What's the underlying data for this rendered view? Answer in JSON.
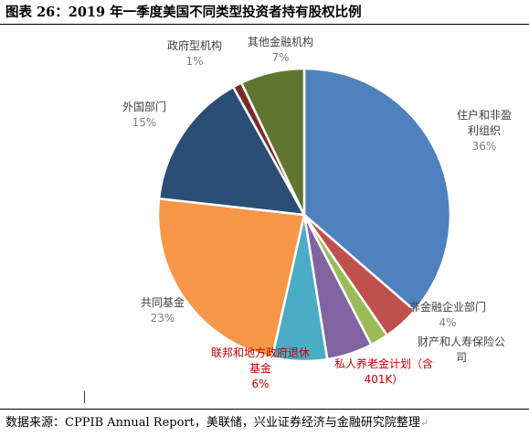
{
  "figure": {
    "title": "图表  26：2019 年一季度美国不同类型投资者持有股权比例",
    "source": "数据来源：CPPIB Annual Report，美联储，兴业证券经济与金融研究院整理"
  },
  "chart_data": {
    "type": "pie",
    "start_angle_deg": 0,
    "direction": "clockwise",
    "slices": [
      {
        "label": [
          "住户和非盈",
          "利组织"
        ],
        "value": 36,
        "value_label": "36%",
        "color": "#4f81bd",
        "label_color": "#404040"
      },
      {
        "label": [
          "非金融企业部门"
        ],
        "value": 4,
        "value_label": "4%",
        "color": "#c0504d",
        "label_color": "#404040"
      },
      {
        "label": [
          "财产和人寿保险公",
          "司"
        ],
        "value": 2,
        "value_label": "",
        "color": "#9bbb59",
        "label_color": "#404040"
      },
      {
        "label": [
          "私人养老金计划（含",
          "401K）"
        ],
        "value": 5,
        "value_label": "",
        "color": "#8064a2",
        "label_color": "#c00000"
      },
      {
        "label": [
          "联邦和地方政府退休",
          "基金"
        ],
        "value": 6,
        "value_label": "6%",
        "color": "#4bacc6",
        "label_color": "#c00000"
      },
      {
        "label": [
          "共同基金"
        ],
        "value": 23,
        "value_label": "23%",
        "color": "#f79646",
        "label_color": "#404040"
      },
      {
        "label": [
          "外国部门"
        ],
        "value": 15,
        "value_label": "15%",
        "color": "#2c4d75",
        "label_color": "#404040"
      },
      {
        "label": [
          "政府型机构"
        ],
        "value": 1,
        "value_label": "1%",
        "color": "#772c2a",
        "label_color": "#404040"
      },
      {
        "label": [
          "其他金融机构"
        ],
        "value": 7,
        "value_label": "7%",
        "color": "#5f7530",
        "label_color": "#404040"
      }
    ]
  }
}
